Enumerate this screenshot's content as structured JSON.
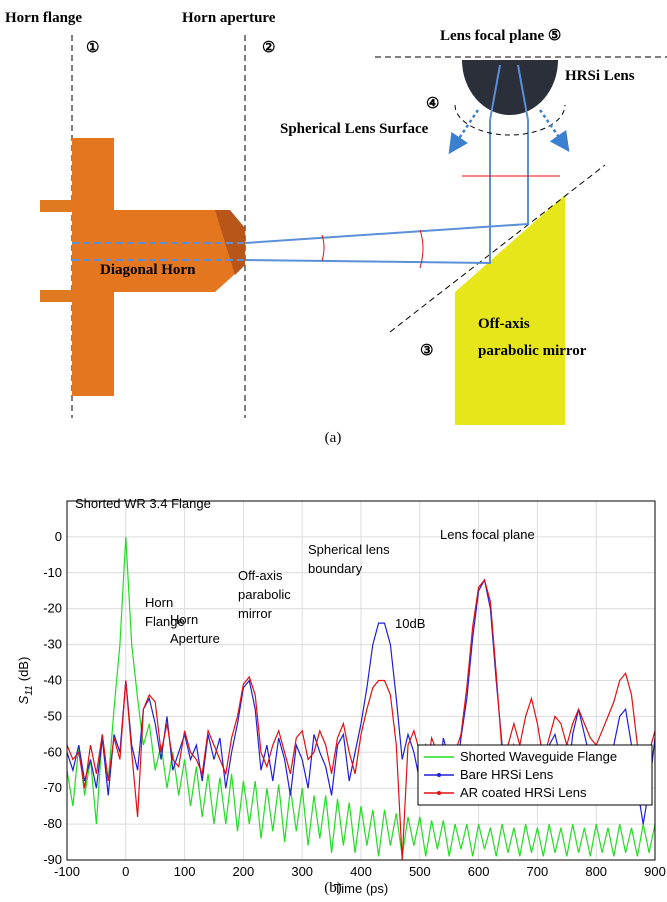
{
  "diagram": {
    "horn_flange": "Horn flange",
    "marker_1": "①",
    "horn_aperture": "Horn aperture",
    "marker_2": "②",
    "lens_focal_plane": "Lens focal plane ⑤",
    "hrsi_lens": "HRSi Lens",
    "marker_4": "④",
    "spherical_surface": "Spherical Lens Surface",
    "diagonal_horn": "Diagonal Horn",
    "mirror": [
      "Off-axis",
      "parabolic mirror"
    ],
    "marker_3": "③",
    "caption": "(a)"
  },
  "chart_data": {
    "type": "line",
    "caption": "(b)",
    "xlabel": "Time (ps)",
    "ylabel": [
      "S",
      "11",
      "(dB)"
    ],
    "xlim": [
      -100,
      900
    ],
    "ylim": [
      -90,
      10
    ],
    "xticks": [
      -100,
      0,
      100,
      200,
      300,
      400,
      500,
      600,
      700,
      800,
      900
    ],
    "yticks": [
      -90,
      -80,
      -70,
      -60,
      -50,
      -40,
      -30,
      -20,
      -10,
      0
    ],
    "grid": true,
    "legend": "lower right",
    "annotations": [
      [
        "Shorted WR 3.4 Flange"
      ],
      [
        "Horn",
        "Flange"
      ],
      [
        "Horn",
        "Aperture"
      ],
      [
        "Off-axis",
        "parabolic",
        "mirror"
      ],
      [
        "Spherical lens",
        "boundary"
      ],
      [
        "10dB"
      ],
      [
        "Lens focal plane"
      ]
    ],
    "x": [
      -100,
      -90,
      -80,
      -70,
      -60,
      -50,
      -40,
      -30,
      -20,
      -10,
      0,
      10,
      20,
      30,
      40,
      50,
      60,
      70,
      80,
      90,
      100,
      110,
      120,
      130,
      140,
      150,
      160,
      170,
      180,
      190,
      200,
      210,
      220,
      230,
      240,
      250,
      260,
      270,
      280,
      290,
      300,
      310,
      320,
      330,
      340,
      350,
      360,
      370,
      380,
      390,
      400,
      410,
      420,
      430,
      440,
      450,
      460,
      470,
      480,
      490,
      500,
      510,
      520,
      530,
      540,
      550,
      560,
      570,
      580,
      590,
      600,
      610,
      620,
      630,
      640,
      650,
      660,
      670,
      680,
      690,
      700,
      710,
      720,
      730,
      740,
      750,
      760,
      770,
      780,
      790,
      800,
      810,
      820,
      830,
      840,
      850,
      860,
      870,
      880,
      890,
      900
    ],
    "series": [
      {
        "name": "Shorted Waveguide Flange",
        "color": "#22dd22",
        "values": [
          -65,
          -75,
          -58,
          -72,
          -62,
          -80,
          -55,
          -68,
          -48,
          -30,
          0,
          -30,
          -45,
          -58,
          -52,
          -65,
          -58,
          -70,
          -60,
          -72,
          -62,
          -75,
          -64,
          -78,
          -66,
          -80,
          -67,
          -80,
          -66,
          -82,
          -68,
          -80,
          -68,
          -84,
          -70,
          -82,
          -69,
          -85,
          -70,
          -82,
          -70,
          -86,
          -72,
          -84,
          -72,
          -88,
          -73,
          -86,
          -74,
          -88,
          -75,
          -86,
          -76,
          -89,
          -76,
          -86,
          -77,
          -89,
          -78,
          -86,
          -78,
          -89,
          -79,
          -87,
          -79,
          -89,
          -80,
          -87,
          -80,
          -89,
          -80,
          -87,
          -81,
          -89,
          -80,
          -88,
          -81,
          -89,
          -80,
          -88,
          -81,
          -89,
          -80,
          -88,
          -81,
          -89,
          -80,
          -88,
          -81,
          -89,
          -80,
          -88,
          -81,
          -89,
          -80,
          -88,
          -81,
          -89,
          -80,
          -88,
          -80
        ]
      },
      {
        "name": "Bare HRSi Lens",
        "color": "#1f1fd6",
        "values": [
          -60,
          -65,
          -58,
          -68,
          -62,
          -70,
          -56,
          -72,
          -55,
          -60,
          -40,
          -58,
          -65,
          -48,
          -45,
          -52,
          -62,
          -50,
          -65,
          -60,
          -55,
          -62,
          -58,
          -68,
          -55,
          -62,
          -56,
          -70,
          -60,
          -52,
          -42,
          -40,
          -48,
          -65,
          -58,
          -68,
          -56,
          -62,
          -72,
          -58,
          -62,
          -70,
          -55,
          -60,
          -64,
          -72,
          -58,
          -55,
          -68,
          -60,
          -52,
          -42,
          -30,
          -24,
          -24,
          -30,
          -45,
          -62,
          -55,
          -60,
          -68,
          -58,
          -62,
          -72,
          -56,
          -62,
          -70,
          -56,
          -45,
          -28,
          -15,
          -12,
          -20,
          -40,
          -58,
          -72,
          -58,
          -62,
          -68,
          -70,
          -60,
          -68,
          -58,
          -55,
          -62,
          -70,
          -55,
          -48,
          -55,
          -62,
          -60,
          -65,
          -60,
          -58,
          -50,
          -48,
          -58,
          -70,
          -80,
          -70,
          -56
        ]
      },
      {
        "name": "AR coated HRSi Lens",
        "color": "#e01010",
        "values": [
          -58,
          -62,
          -60,
          -70,
          -58,
          -66,
          -55,
          -68,
          -56,
          -62,
          -40,
          -60,
          -78,
          -48,
          -44,
          -46,
          -60,
          -52,
          -62,
          -64,
          -54,
          -60,
          -62,
          -66,
          -54,
          -58,
          -62,
          -66,
          -56,
          -50,
          -41,
          -39,
          -44,
          -60,
          -64,
          -58,
          -54,
          -60,
          -66,
          -56,
          -54,
          -62,
          -60,
          -54,
          -58,
          -66,
          -56,
          -52,
          -60,
          -66,
          -55,
          -48,
          -42,
          -40,
          -40,
          -44,
          -58,
          -90,
          -58,
          -54,
          -60,
          -68,
          -56,
          -60,
          -58,
          -66,
          -60,
          -55,
          -42,
          -25,
          -14,
          -12,
          -18,
          -38,
          -60,
          -58,
          -52,
          -58,
          -50,
          -45,
          -52,
          -62,
          -56,
          -50,
          -52,
          -58,
          -52,
          -48,
          -52,
          -56,
          -58,
          -54,
          -50,
          -46,
          -40,
          -38,
          -44,
          -58,
          -66,
          -60,
          -54
        ]
      }
    ]
  }
}
